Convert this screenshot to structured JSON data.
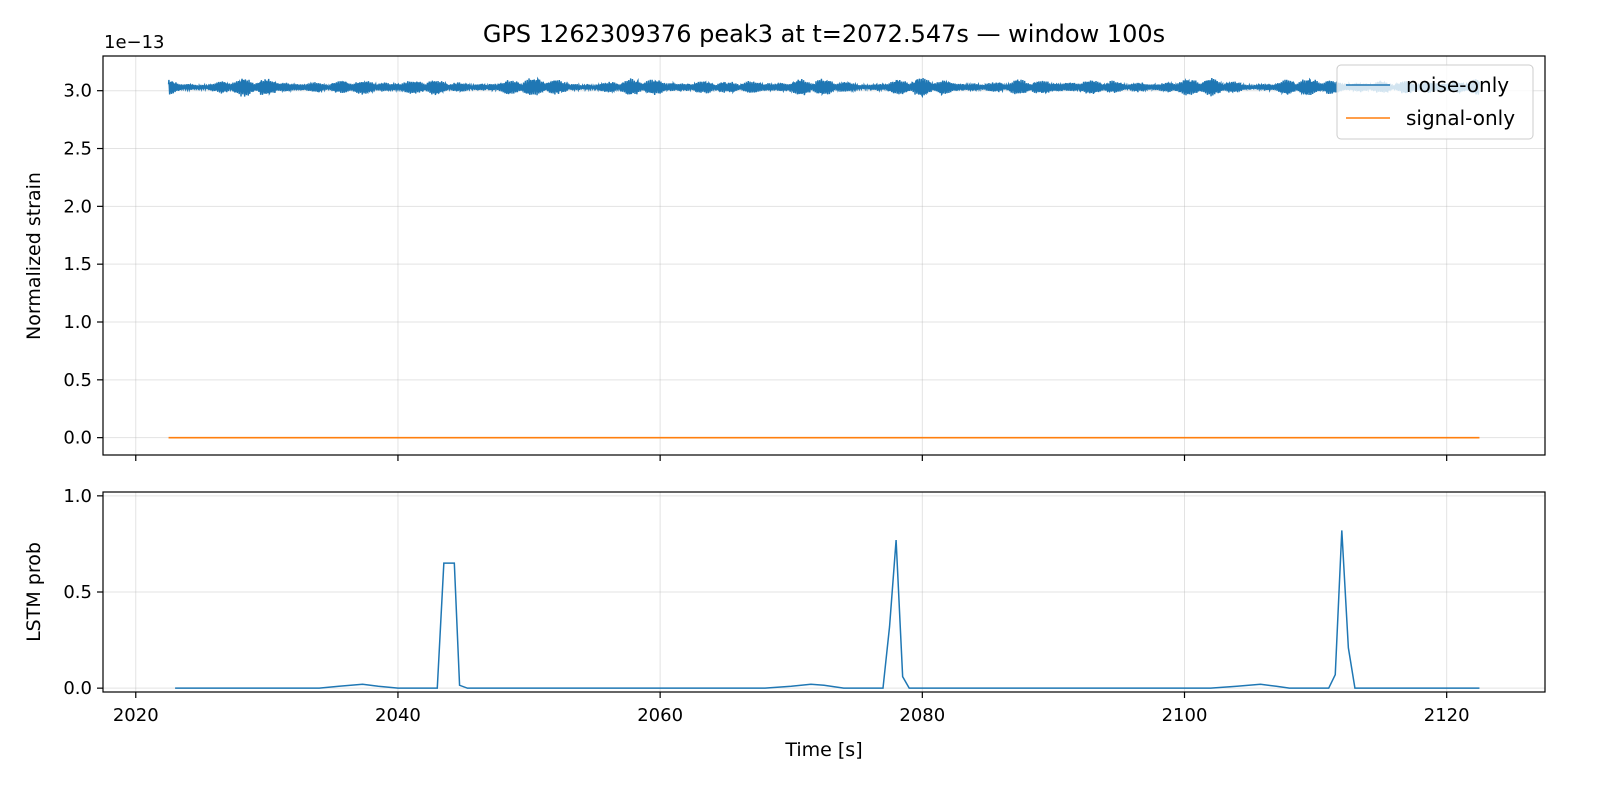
{
  "chart_data": [
    {
      "type": "line",
      "title": "GPS 1262309376 peak3 at t=2072.547s — window 100s",
      "xlabel": "",
      "ylabel": "Normalized strain",
      "y_offset_label": "1e−13",
      "xlim": [
        2017.5,
        2127.5
      ],
      "ylim": [
        -0.15,
        3.3
      ],
      "y_scale": 1e-13,
      "yticks": [
        0.0,
        0.5,
        1.0,
        1.5,
        2.0,
        2.5,
        3.0
      ],
      "ytick_labels": [
        "0.0",
        "0.5",
        "1.0",
        "1.5",
        "2.0",
        "2.5",
        "3.0"
      ],
      "xticks": [
        2020,
        2040,
        2060,
        2080,
        2100,
        2120
      ],
      "grid": true,
      "legend_position": "top-right",
      "series": [
        {
          "name": "noise-only",
          "color": "#1f77b4",
          "style": "dense-oscillation",
          "x_range": [
            2022.5,
            2122.5
          ],
          "center": 3.03,
          "amplitude_max": 0.09
        },
        {
          "name": "signal-only",
          "color": "#ff7f0e",
          "x": [
            2022.5,
            2122.5
          ],
          "y": [
            0.0,
            0.0
          ]
        }
      ]
    },
    {
      "type": "line",
      "xlabel": "Time [s]",
      "ylabel": "LSTM prob",
      "xlim": [
        2017.5,
        2127.5
      ],
      "ylim": [
        -0.02,
        1.02
      ],
      "yticks": [
        0.0,
        0.5,
        1.0
      ],
      "ytick_labels": [
        "0.0",
        "0.5",
        "1.0"
      ],
      "xticks": [
        2020,
        2040,
        2060,
        2080,
        2100,
        2120
      ],
      "xtick_labels": [
        "2020",
        "2040",
        "2060",
        "2080",
        "2100",
        "2120"
      ],
      "grid": true,
      "series": [
        {
          "color": "#1f77b4",
          "x": [
            2023.0,
            2034.0,
            2035.5,
            2037.3,
            2038.5,
            2040.0,
            2043.0,
            2043.5,
            2043.9,
            2044.3,
            2044.7,
            2045.3,
            2068.0,
            2070.0,
            2071.5,
            2072.5,
            2074.0,
            2077.0,
            2077.5,
            2078.0,
            2078.5,
            2079.0,
            2102.0,
            2104.0,
            2105.8,
            2107.0,
            2108.0,
            2111.0,
            2111.5,
            2112.0,
            2112.5,
            2113.0,
            2122.5
          ],
          "y": [
            0.0,
            0.0,
            0.01,
            0.02,
            0.01,
            0.0,
            0.0,
            0.65,
            0.65,
            0.65,
            0.015,
            0.0,
            0.0,
            0.01,
            0.02,
            0.015,
            0.0,
            0.0,
            0.32,
            0.77,
            0.06,
            0.0,
            0.0,
            0.01,
            0.02,
            0.01,
            0.0,
            0.0,
            0.07,
            0.82,
            0.21,
            0.0,
            0.0
          ]
        }
      ]
    }
  ]
}
